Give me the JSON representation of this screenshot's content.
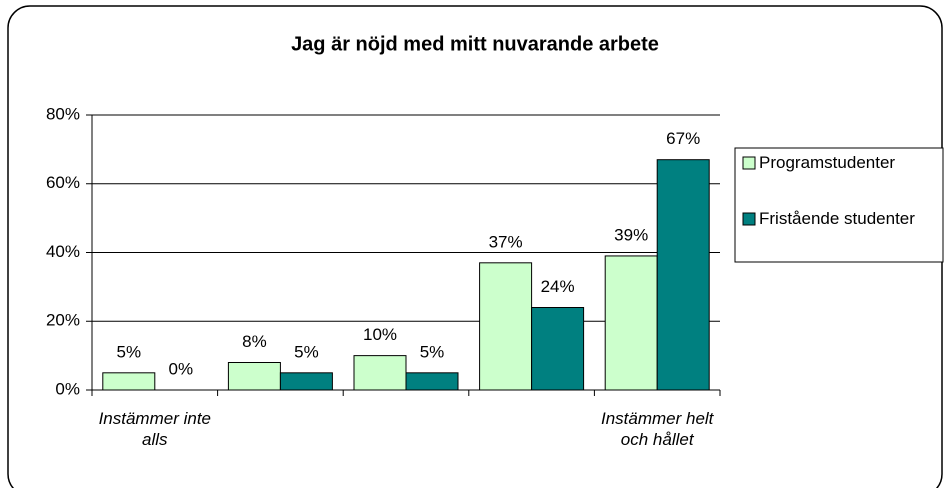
{
  "chart_data": {
    "type": "bar",
    "title": "Jag är nöjd med mitt nuvarande arbete",
    "categories": [
      "Instämmer inte alls",
      null,
      null,
      null,
      "Instämmer helt och hållet"
    ],
    "series": [
      {
        "name": "Programstudenter",
        "color": "#ccffcc",
        "values": [
          5,
          8,
          10,
          37,
          39
        ],
        "value_labels": [
          "5%",
          "8%",
          "10%",
          "37%",
          "39%"
        ]
      },
      {
        "name": "Fristående studenter",
        "color": "#008080",
        "values": [
          0,
          5,
          5,
          24,
          67
        ],
        "value_labels": [
          "0%",
          "5%",
          "5%",
          "24%",
          "67%"
        ]
      }
    ],
    "ylim": [
      0,
      80
    ],
    "yticks": [
      {
        "value": 0,
        "label": "0%"
      },
      {
        "value": 20,
        "label": "20%"
      },
      {
        "value": 40,
        "label": "40%"
      },
      {
        "value": 60,
        "label": "60%"
      },
      {
        "value": 80,
        "label": "80%"
      }
    ],
    "grid": true,
    "legend": "right"
  }
}
